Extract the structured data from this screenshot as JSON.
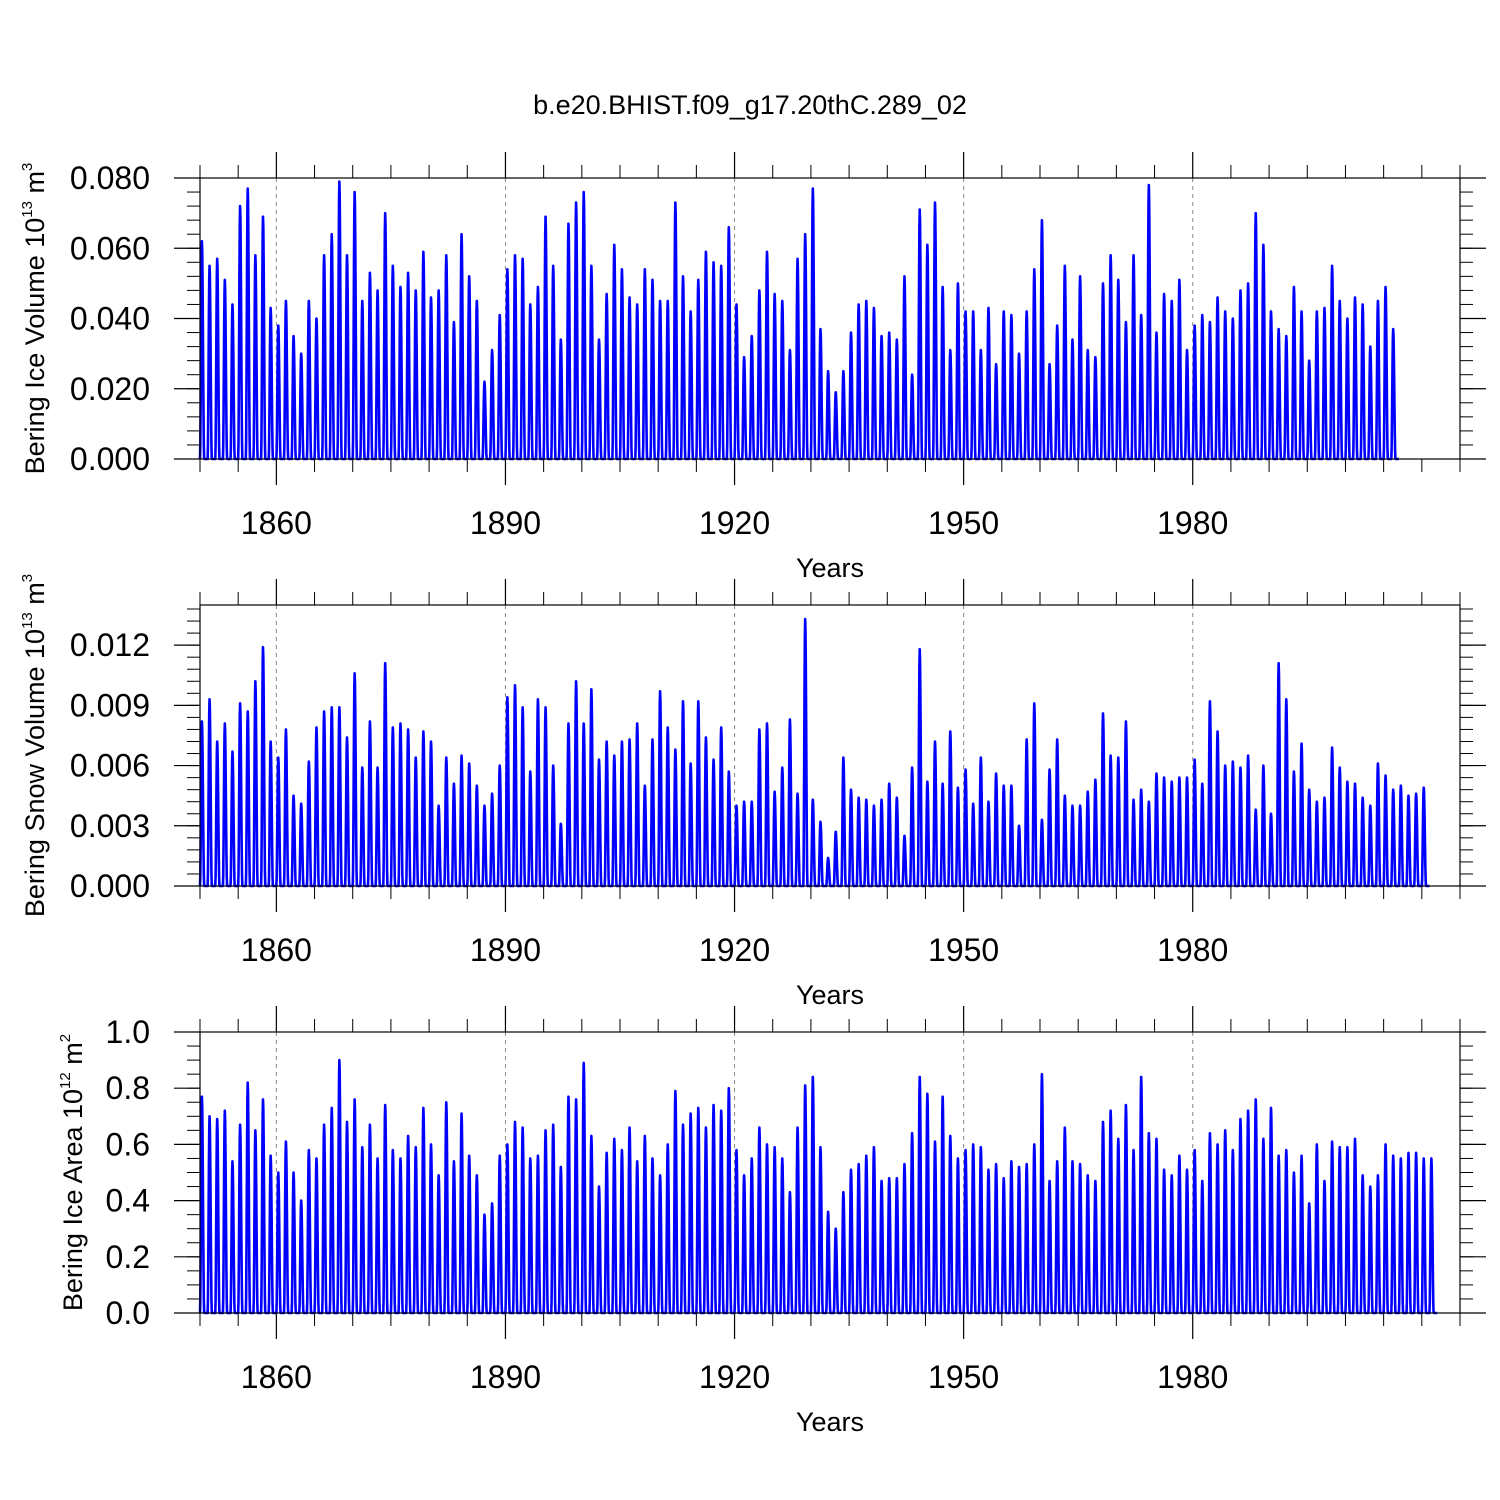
{
  "page": {
    "title": "b.e20.BHIST.f09_g17.20thC.289_02"
  },
  "colors": {
    "series": "#0000ff",
    "axes": "#000000",
    "gridline": "#888888"
  },
  "chart_data": [
    {
      "type": "line",
      "name": "ice_volume",
      "title": "b.e20.BHIST.f09_g17.20thC.289_02",
      "xlabel": "Years",
      "ylabel": {
        "base": "Bering Ice Volume 10",
        "exp": "13",
        "unit": " m",
        "unit_exp": "3"
      },
      "xlim": [
        1850,
        2015
      ],
      "ylim": [
        0,
        0.08
      ],
      "x_ticks": [
        1860,
        1890,
        1920,
        1950,
        1980
      ],
      "x_tick_labels": [
        "1860",
        "1890",
        "1920",
        "1950",
        "1980"
      ],
      "y_ticks": [
        0,
        0.02,
        0.04,
        0.06,
        0.08
      ],
      "y_tick_labels": [
        "0.000",
        "0.020",
        "0.040",
        "0.060",
        "0.080"
      ],
      "x_minor_step": 5,
      "y_minor_step": 0.004,
      "grid": "dashed vertical lines at major x ticks",
      "legend": "none",
      "series": [
        {
          "x_start": 1850.0,
          "x_step": 1.0,
          "peak_phase": 0.25,
          "values": [
            0.062,
            0.055,
            0.057,
            0.051,
            0.044,
            0.072,
            0.077,
            0.058,
            0.069,
            0.043,
            0.038,
            0.045,
            0.035,
            0.03,
            0.045,
            0.04,
            0.058,
            0.064,
            0.079,
            0.058,
            0.076,
            0.045,
            0.053,
            0.048,
            0.07,
            0.055,
            0.049,
            0.053,
            0.048,
            0.059,
            0.046,
            0.048,
            0.058,
            0.039,
            0.064,
            0.052,
            0.045,
            0.022,
            0.031,
            0.041,
            0.054,
            0.058,
            0.057,
            0.044,
            0.049,
            0.069,
            0.055,
            0.034,
            0.067,
            0.073,
            0.076,
            0.055,
            0.034,
            0.047,
            0.061,
            0.054,
            0.046,
            0.044,
            0.054,
            0.051,
            0.045,
            0.045,
            0.073,
            0.052,
            0.042,
            0.051,
            0.059,
            0.056,
            0.055,
            0.066,
            0.044,
            0.029,
            0.035,
            0.048,
            0.059,
            0.047,
            0.045,
            0.031,
            0.057,
            0.064,
            0.077,
            0.037,
            0.025,
            0.019,
            0.025,
            0.036,
            0.044,
            0.045,
            0.043,
            0.035,
            0.036,
            0.034,
            0.052,
            0.024,
            0.071,
            0.061,
            0.073,
            0.049,
            0.031,
            0.05,
            0.042,
            0.042,
            0.031,
            0.043,
            0.027,
            0.042,
            0.041,
            0.03,
            0.042,
            0.054,
            0.068,
            0.027,
            0.038,
            0.055,
            0.034,
            0.052,
            0.031,
            0.029,
            0.05,
            0.058,
            0.051,
            0.039,
            0.058,
            0.041,
            0.078,
            0.036,
            0.047,
            0.045,
            0.051,
            0.031,
            0.038,
            0.041,
            0.039,
            0.046,
            0.042,
            0.04,
            0.048,
            0.05,
            0.07,
            0.061,
            0.042,
            0.037,
            0.035,
            0.049,
            0.042,
            0.028,
            0.042,
            0.043,
            0.055,
            0.045,
            0.04,
            0.046,
            0.044,
            0.032,
            0.045,
            0.049,
            0.037
          ],
          "end_value": 0.011
        }
      ]
    },
    {
      "type": "line",
      "name": "snow_volume",
      "xlabel": "Years",
      "ylabel": {
        "base": "Bering Snow Volume 10",
        "exp": "13",
        "unit": " m",
        "unit_exp": "3"
      },
      "xlim": [
        1850,
        2015
      ],
      "ylim": [
        0,
        0.014
      ],
      "x_ticks": [
        1860,
        1890,
        1920,
        1950,
        1980
      ],
      "x_tick_labels": [
        "1860",
        "1890",
        "1920",
        "1950",
        "1980"
      ],
      "y_ticks": [
        0,
        0.003,
        0.006,
        0.009,
        0.012
      ],
      "y_tick_labels": [
        "0.000",
        "0.003",
        "0.006",
        "0.009",
        "0.012"
      ],
      "x_minor_step": 5,
      "y_minor_step": 0.0006,
      "grid": "dashed vertical lines at major x ticks",
      "legend": "none",
      "series": [
        {
          "x_start": 1850.0,
          "x_step": 1.0,
          "peak_phase": 0.25,
          "values": [
            0.0082,
            0.0093,
            0.0072,
            0.0081,
            0.0067,
            0.0091,
            0.0087,
            0.0102,
            0.0119,
            0.0072,
            0.0064,
            0.0078,
            0.0045,
            0.0041,
            0.0062,
            0.0079,
            0.0087,
            0.0089,
            0.0089,
            0.0074,
            0.0106,
            0.0059,
            0.0082,
            0.0059,
            0.0111,
            0.0079,
            0.0081,
            0.0078,
            0.0064,
            0.0077,
            0.0072,
            0.004,
            0.0064,
            0.0051,
            0.0065,
            0.0061,
            0.005,
            0.004,
            0.0046,
            0.006,
            0.0094,
            0.01,
            0.0089,
            0.0057,
            0.0093,
            0.0089,
            0.006,
            0.0031,
            0.0081,
            0.0102,
            0.0081,
            0.0098,
            0.0063,
            0.0072,
            0.0065,
            0.0072,
            0.0073,
            0.0081,
            0.005,
            0.0073,
            0.0097,
            0.0079,
            0.0068,
            0.0092,
            0.0061,
            0.0092,
            0.0074,
            0.0063,
            0.0079,
            0.0057,
            0.004,
            0.0042,
            0.0042,
            0.0078,
            0.0081,
            0.0047,
            0.0059,
            0.0083,
            0.0046,
            0.0133,
            0.0043,
            0.0032,
            0.0014,
            0.0027,
            0.0064,
            0.0048,
            0.0044,
            0.0043,
            0.004,
            0.0043,
            0.0051,
            0.0044,
            0.0025,
            0.0059,
            0.0118,
            0.0052,
            0.0072,
            0.0051,
            0.0077,
            0.0049,
            0.0058,
            0.0041,
            0.0064,
            0.0042,
            0.0056,
            0.005,
            0.005,
            0.003,
            0.0073,
            0.0091,
            0.0033,
            0.0058,
            0.0073,
            0.0045,
            0.004,
            0.004,
            0.0047,
            0.0053,
            0.0086,
            0.0065,
            0.0064,
            0.0082,
            0.0043,
            0.0048,
            0.0042,
            0.0056,
            0.0054,
            0.0052,
            0.0054,
            0.0054,
            0.0063,
            0.0051,
            0.0092,
            0.0077,
            0.006,
            0.0062,
            0.0059,
            0.0065,
            0.0038,
            0.006,
            0.0036,
            0.0111,
            0.0093,
            0.0057,
            0.0071,
            0.0048,
            0.0042,
            0.0044,
            0.0069,
            0.0059,
            0.0052,
            0.0051,
            0.0044,
            0.004,
            0.0061,
            0.0055,
            0.0048,
            0.005,
            0.0045,
            0.0046,
            0.0049
          ],
          "end_value": 0.0007
        }
      ]
    },
    {
      "type": "line",
      "name": "ice_area",
      "xlabel": "Years",
      "ylabel": {
        "base": "Bering Ice Area 10",
        "exp": "12",
        "unit": " m",
        "unit_exp": "2"
      },
      "xlim": [
        1850,
        2015
      ],
      "ylim": [
        0,
        1.0
      ],
      "x_ticks": [
        1860,
        1890,
        1920,
        1950,
        1980
      ],
      "x_tick_labels": [
        "1860",
        "1890",
        "1920",
        "1950",
        "1980"
      ],
      "y_ticks": [
        0,
        0.2,
        0.4,
        0.6,
        0.8,
        1.0
      ],
      "y_tick_labels": [
        "0.0",
        "0.2",
        "0.4",
        "0.6",
        "0.8",
        "1.0"
      ],
      "x_minor_step": 5,
      "y_minor_step": 0.05,
      "grid": "dashed vertical lines at major x ticks",
      "legend": "none",
      "series": [
        {
          "x_start": 1850.0,
          "x_step": 1.0,
          "peak_phase": 0.25,
          "values": [
            0.77,
            0.7,
            0.69,
            0.72,
            0.54,
            0.67,
            0.82,
            0.65,
            0.76,
            0.56,
            0.5,
            0.61,
            0.5,
            0.4,
            0.58,
            0.55,
            0.67,
            0.73,
            0.9,
            0.68,
            0.76,
            0.59,
            0.67,
            0.55,
            0.74,
            0.58,
            0.55,
            0.63,
            0.59,
            0.73,
            0.6,
            0.49,
            0.75,
            0.54,
            0.71,
            0.56,
            0.49,
            0.35,
            0.39,
            0.56,
            0.6,
            0.68,
            0.66,
            0.55,
            0.56,
            0.65,
            0.67,
            0.52,
            0.77,
            0.76,
            0.89,
            0.63,
            0.45,
            0.57,
            0.62,
            0.58,
            0.66,
            0.54,
            0.63,
            0.55,
            0.49,
            0.6,
            0.79,
            0.67,
            0.71,
            0.73,
            0.66,
            0.74,
            0.72,
            0.8,
            0.58,
            0.49,
            0.55,
            0.66,
            0.6,
            0.59,
            0.55,
            0.43,
            0.66,
            0.81,
            0.84,
            0.59,
            0.36,
            0.3,
            0.43,
            0.51,
            0.53,
            0.56,
            0.59,
            0.47,
            0.48,
            0.48,
            0.53,
            0.64,
            0.84,
            0.78,
            0.61,
            0.77,
            0.63,
            0.55,
            0.58,
            0.6,
            0.59,
            0.51,
            0.53,
            0.48,
            0.54,
            0.52,
            0.53,
            0.6,
            0.85,
            0.47,
            0.54,
            0.66,
            0.54,
            0.53,
            0.49,
            0.47,
            0.68,
            0.72,
            0.62,
            0.74,
            0.58,
            0.84,
            0.64,
            0.62,
            0.51,
            0.49,
            0.56,
            0.51,
            0.58,
            0.47,
            0.64,
            0.6,
            0.65,
            0.58,
            0.69,
            0.72,
            0.76,
            0.62,
            0.73,
            0.56,
            0.58,
            0.5,
            0.56,
            0.39,
            0.6,
            0.47,
            0.61,
            0.59,
            0.59,
            0.62,
            0.49,
            0.45,
            0.49,
            0.6,
            0.56,
            0.55,
            0.57,
            0.57,
            0.55,
            0.55
          ],
          "end_value": 0.28
        }
      ]
    }
  ]
}
